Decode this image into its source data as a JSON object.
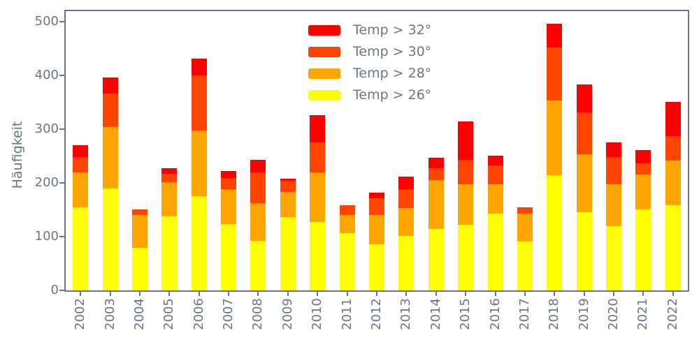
{
  "figure": {
    "background": "#ffffff",
    "axis_color": "#6a7585"
  },
  "chart_data": {
    "type": "bar",
    "stacked": true,
    "title": "",
    "xlabel": "",
    "ylabel": "Häufigkeit",
    "categories": [
      "2002",
      "2003",
      "2004",
      "2005",
      "2006",
      "2007",
      "2008",
      "2009",
      "2010",
      "2011",
      "2012",
      "2013",
      "2014",
      "2015",
      "2016",
      "2017",
      "2018",
      "2019",
      "2020",
      "2021",
      "2022"
    ],
    "series": [
      {
        "name": "Temp > 32°",
        "color": "#ff0000",
        "values": [
          23,
          30,
          0,
          10,
          32,
          13,
          23,
          4,
          51,
          0,
          10,
          23,
          20,
          72,
          18,
          0,
          44,
          51,
          28,
          25,
          64
        ]
      },
      {
        "name": "Temp > 30°",
        "color": "#ff4500",
        "values": [
          28,
          63,
          10,
          16,
          102,
          21,
          57,
          21,
          55,
          17,
          31,
          36,
          22,
          46,
          36,
          12,
          100,
          79,
          50,
          20,
          45
        ]
      },
      {
        "name": "Temp > 28°",
        "color": "#ffa500",
        "values": [
          65,
          114,
          62,
          63,
          123,
          65,
          71,
          46,
          92,
          34,
          55,
          51,
          91,
          75,
          54,
          52,
          139,
          108,
          79,
          65,
          83
        ]
      },
      {
        "name": "Temp > 26°",
        "color": "#ffff00",
        "values": [
          155,
          190,
          79,
          138,
          175,
          123,
          92,
          137,
          128,
          107,
          86,
          102,
          114,
          122,
          143,
          91,
          214,
          145,
          119,
          151,
          159
        ]
      }
    ],
    "totals": [
      271,
      397,
      151,
      227,
      432,
      222,
      243,
      208,
      326,
      158,
      182,
      212,
      247,
      315,
      251,
      155,
      497,
      383,
      276,
      261,
      351
    ],
    "stack_order_bottom_to_top": [
      "Temp > 26°",
      "Temp > 28°",
      "Temp > 30°",
      "Temp > 32°"
    ],
    "yticks": [
      0,
      100,
      200,
      300,
      400,
      500
    ],
    "ylim": [
      0,
      520
    ],
    "grid": false,
    "legend_position": "upper center",
    "legend_frame": false
  }
}
